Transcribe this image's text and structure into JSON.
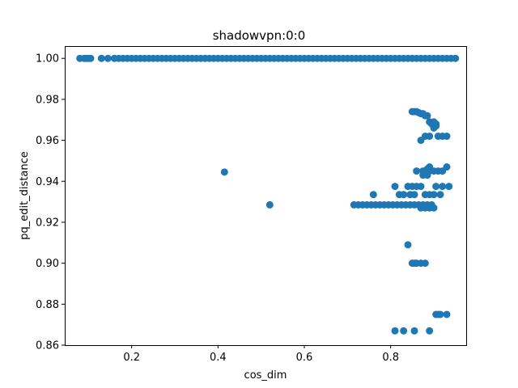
{
  "chart_data": {
    "type": "scatter",
    "title": "shadowvpn:0:0",
    "xlabel": "cos_dim",
    "ylabel": "pq_edit_distance",
    "xlim": [
      0.045,
      0.975
    ],
    "ylim": [
      0.86,
      1.006
    ],
    "xticks": [
      0.2,
      0.4,
      0.6,
      0.8
    ],
    "xtick_labels": [
      "0.2",
      "0.4",
      "0.6",
      "0.8"
    ],
    "yticks": [
      0.86,
      0.88,
      0.9,
      0.92,
      0.94,
      0.96,
      0.98,
      1.0
    ],
    "ytick_labels": [
      "0.86",
      "0.88",
      "0.90",
      "0.92",
      "0.94",
      "0.96",
      "0.98",
      "1.00"
    ],
    "grid": false,
    "marker_color": "#1f77b4",
    "series": [
      {
        "x": [
          0.08,
          0.09,
          0.095,
          0.1,
          0.105,
          0.13,
          0.145,
          0.16,
          0.17,
          0.18,
          0.19,
          0.2,
          0.21,
          0.22,
          0.23,
          0.24,
          0.25,
          0.26,
          0.27,
          0.28,
          0.29,
          0.3,
          0.31,
          0.32,
          0.33,
          0.34,
          0.35,
          0.36,
          0.37,
          0.38,
          0.39,
          0.4,
          0.41,
          0.42,
          0.43,
          0.44,
          0.45,
          0.46,
          0.47,
          0.48,
          0.49,
          0.5,
          0.51,
          0.52,
          0.53,
          0.54,
          0.55,
          0.56,
          0.57,
          0.58,
          0.59,
          0.6,
          0.61,
          0.62,
          0.63,
          0.64,
          0.65,
          0.66,
          0.67,
          0.68,
          0.69,
          0.7,
          0.71,
          0.72,
          0.73,
          0.74,
          0.75,
          0.76,
          0.77,
          0.78,
          0.79,
          0.8,
          0.81,
          0.82,
          0.83,
          0.84,
          0.85,
          0.86,
          0.87,
          0.88,
          0.89,
          0.9,
          0.91,
          0.92,
          0.93,
          0.94,
          0.95,
          0.85,
          0.855,
          0.86,
          0.865,
          0.87,
          0.875,
          0.88,
          0.885,
          0.89,
          0.895,
          0.9,
          0.905,
          0.9,
          0.905,
          0.87,
          0.88,
          0.89,
          0.91,
          0.92,
          0.93,
          0.86,
          0.875,
          0.88,
          0.885,
          0.89,
          0.9,
          0.91,
          0.92,
          0.93,
          0.89,
          0.875,
          0.885,
          0.415,
          0.52,
          0.715,
          0.725,
          0.735,
          0.745,
          0.755,
          0.765,
          0.775,
          0.785,
          0.795,
          0.805,
          0.815,
          0.825,
          0.835,
          0.845,
          0.855,
          0.865,
          0.87,
          0.875,
          0.88,
          0.885,
          0.89,
          0.895,
          0.9,
          0.76,
          0.81,
          0.82,
          0.84,
          0.85,
          0.86,
          0.87,
          0.83,
          0.845,
          0.855,
          0.88,
          0.89,
          0.9,
          0.905,
          0.915,
          0.92,
          0.935,
          0.85,
          0.855,
          0.86,
          0.87,
          0.88,
          0.84,
          0.81,
          0.83,
          0.855,
          0.89,
          0.905,
          0.91,
          0.915,
          0.93
        ],
        "y": [
          1.0,
          1.0,
          1.0,
          1.0,
          1.0,
          1.0,
          1.0,
          1.0,
          1.0,
          1.0,
          1.0,
          1.0,
          1.0,
          1.0,
          1.0,
          1.0,
          1.0,
          1.0,
          1.0,
          1.0,
          1.0,
          1.0,
          1.0,
          1.0,
          1.0,
          1.0,
          1.0,
          1.0,
          1.0,
          1.0,
          1.0,
          1.0,
          1.0,
          1.0,
          1.0,
          1.0,
          1.0,
          1.0,
          1.0,
          1.0,
          1.0,
          1.0,
          1.0,
          1.0,
          1.0,
          1.0,
          1.0,
          1.0,
          1.0,
          1.0,
          1.0,
          1.0,
          1.0,
          1.0,
          1.0,
          1.0,
          1.0,
          1.0,
          1.0,
          1.0,
          1.0,
          1.0,
          1.0,
          1.0,
          1.0,
          1.0,
          1.0,
          1.0,
          1.0,
          1.0,
          1.0,
          1.0,
          1.0,
          1.0,
          1.0,
          1.0,
          1.0,
          1.0,
          1.0,
          1.0,
          1.0,
          1.0,
          1.0,
          1.0,
          1.0,
          1.0,
          1.0,
          0.974,
          0.974,
          0.974,
          0.9735,
          0.973,
          0.973,
          0.972,
          0.972,
          0.969,
          0.968,
          0.969,
          0.968,
          0.966,
          0.967,
          0.96,
          0.962,
          0.962,
          0.962,
          0.962,
          0.962,
          0.945,
          0.945,
          0.945,
          0.946,
          0.947,
          0.945,
          0.945,
          0.945,
          0.947,
          0.945,
          0.943,
          0.943,
          0.9445,
          0.9285,
          0.9285,
          0.9285,
          0.9285,
          0.9285,
          0.9285,
          0.9285,
          0.9285,
          0.9285,
          0.9285,
          0.9285,
          0.9285,
          0.9285,
          0.9285,
          0.9285,
          0.9285,
          0.9285,
          0.927,
          0.9285,
          0.927,
          0.9285,
          0.927,
          0.9285,
          0.927,
          0.9335,
          0.9375,
          0.9335,
          0.9375,
          0.9375,
          0.9375,
          0.9375,
          0.9335,
          0.9335,
          0.9335,
          0.9335,
          0.9335,
          0.9335,
          0.9375,
          0.9335,
          0.9375,
          0.9375,
          0.9,
          0.9,
          0.9,
          0.9,
          0.9,
          0.909,
          0.867,
          0.867,
          0.867,
          0.867,
          0.875,
          0.875,
          0.875,
          0.875
        ]
      }
    ]
  }
}
